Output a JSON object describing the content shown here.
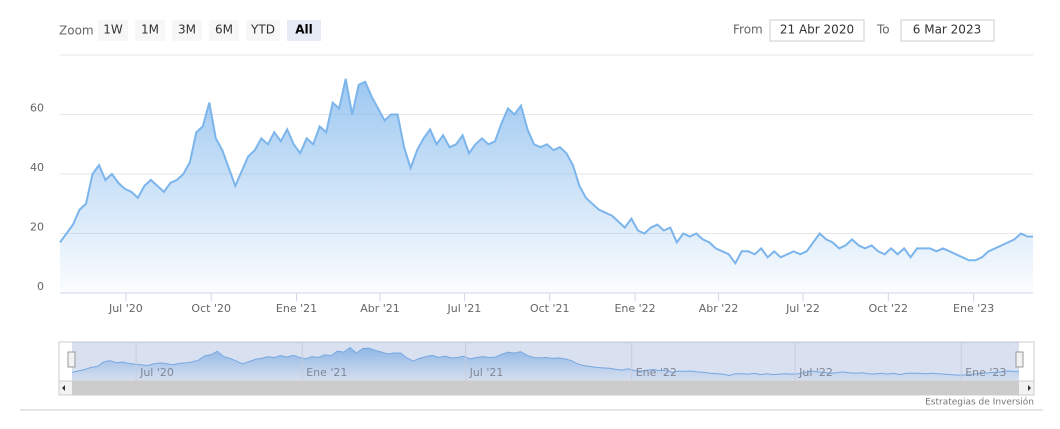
{
  "range_selector": {
    "zoom_label": "Zoom",
    "buttons": [
      "1W",
      "1M",
      "3M",
      "6M",
      "YTD",
      "All"
    ],
    "selected": "All",
    "from_label": "From",
    "from": "21 Abr 2020",
    "to_label": "To",
    "to": "6 Mar 2023"
  },
  "chart_data": {
    "type": "area",
    "color": "#7cb5ec",
    "x": [
      "2020-04-21",
      "2020-04-28",
      "2020-05-05",
      "2020-05-12",
      "2020-05-19",
      "2020-05-26",
      "2020-06-02",
      "2020-06-09",
      "2020-06-16",
      "2020-06-23",
      "2020-06-30",
      "2020-07-07",
      "2020-07-14",
      "2020-07-21",
      "2020-07-28",
      "2020-08-04",
      "2020-08-11",
      "2020-08-18",
      "2020-08-25",
      "2020-09-01",
      "2020-09-08",
      "2020-09-15",
      "2020-09-22",
      "2020-09-29",
      "2020-10-06",
      "2020-10-13",
      "2020-10-20",
      "2020-10-27",
      "2020-11-03",
      "2020-11-10",
      "2020-11-17",
      "2020-11-24",
      "2020-12-01",
      "2020-12-08",
      "2020-12-15",
      "2020-12-22",
      "2020-12-29",
      "2021-01-05",
      "2021-01-12",
      "2021-01-19",
      "2021-01-26",
      "2021-02-02",
      "2021-02-09",
      "2021-02-16",
      "2021-02-23",
      "2021-03-02",
      "2021-03-09",
      "2021-03-16",
      "2021-03-23",
      "2021-03-30",
      "2021-04-06",
      "2021-04-13",
      "2021-04-20",
      "2021-04-27",
      "2021-05-04",
      "2021-05-11",
      "2021-05-18",
      "2021-05-25",
      "2021-06-01",
      "2021-06-08",
      "2021-06-15",
      "2021-06-22",
      "2021-06-29",
      "2021-07-06",
      "2021-07-13",
      "2021-07-20",
      "2021-07-27",
      "2021-08-03",
      "2021-08-10",
      "2021-08-17",
      "2021-08-24",
      "2021-08-31",
      "2021-09-07",
      "2021-09-14",
      "2021-09-21",
      "2021-09-28",
      "2021-10-05",
      "2021-10-12",
      "2021-10-19",
      "2021-10-26",
      "2021-11-02",
      "2021-11-09",
      "2021-11-16",
      "2021-11-23",
      "2021-11-30",
      "2021-12-07",
      "2021-12-14",
      "2021-12-21",
      "2021-12-28",
      "2022-01-04",
      "2022-01-11",
      "2022-01-18",
      "2022-01-25",
      "2022-02-01",
      "2022-02-08",
      "2022-02-15",
      "2022-02-22",
      "2022-03-01",
      "2022-03-08",
      "2022-03-15",
      "2022-03-22",
      "2022-03-29",
      "2022-04-05",
      "2022-04-12",
      "2022-04-19",
      "2022-04-26",
      "2022-05-03",
      "2022-05-10",
      "2022-05-17",
      "2022-05-24",
      "2022-05-31",
      "2022-06-07",
      "2022-06-14",
      "2022-06-21",
      "2022-06-28",
      "2022-07-05",
      "2022-07-12",
      "2022-07-19",
      "2022-07-26",
      "2022-08-02",
      "2022-08-09",
      "2022-08-16",
      "2022-08-23",
      "2022-08-30",
      "2022-09-06",
      "2022-09-13",
      "2022-09-20",
      "2022-09-27",
      "2022-10-04",
      "2022-10-11",
      "2022-10-18",
      "2022-10-25",
      "2022-11-01",
      "2022-11-08",
      "2022-11-15",
      "2022-11-22",
      "2022-11-29",
      "2022-12-06",
      "2022-12-13",
      "2022-12-20",
      "2022-12-27",
      "2023-01-03",
      "2023-01-10",
      "2023-01-17",
      "2023-01-24",
      "2023-01-31",
      "2023-02-07",
      "2023-02-14",
      "2023-02-21",
      "2023-02-28",
      "2023-03-06"
    ],
    "values": [
      17,
      20,
      23,
      28,
      30,
      40,
      43,
      38,
      40,
      37,
      35,
      34,
      32,
      36,
      38,
      36,
      34,
      37,
      38,
      40,
      44,
      54,
      56,
      64,
      52,
      48,
      42,
      36,
      41,
      46,
      48,
      52,
      50,
      54,
      51,
      55,
      50,
      47,
      52,
      50,
      56,
      54,
      64,
      62,
      72,
      60,
      70,
      71,
      66,
      62,
      58,
      60,
      60,
      49,
      42,
      48,
      52,
      55,
      50,
      53,
      49,
      50,
      53,
      47,
      50,
      52,
      50,
      51,
      57,
      62,
      60,
      63,
      55,
      50,
      49,
      50,
      48,
      49,
      47,
      43,
      36,
      32,
      30,
      28,
      27,
      26,
      24,
      22,
      25,
      21,
      20,
      22,
      23,
      21,
      22,
      17,
      20,
      19,
      20,
      18,
      17,
      15,
      14,
      13,
      10,
      14,
      14,
      13,
      15,
      12,
      14,
      12,
      13,
      14,
      13,
      14,
      17,
      20,
      18,
      17,
      15,
      16,
      18,
      16,
      15,
      16,
      14,
      13,
      15,
      13,
      15,
      12,
      15,
      15,
      15,
      14,
      15,
      14,
      13,
      12,
      11,
      11,
      12,
      14,
      15,
      16,
      17,
      18,
      20,
      19,
      19
    ],
    "xlim": [
      "2020-04-21",
      "2023-03-06"
    ],
    "ylim": [
      0,
      80
    ],
    "yticks": [
      0,
      20,
      40,
      60
    ],
    "grid": true,
    "xticks": [
      {
        "value": "2020-07-01",
        "label": "Jul '20"
      },
      {
        "value": "2020-10-01",
        "label": "Oct '20"
      },
      {
        "value": "2021-01-01",
        "label": "Ene '21"
      },
      {
        "value": "2021-04-01",
        "label": "Abr '21"
      },
      {
        "value": "2021-07-01",
        "label": "Jul '21"
      },
      {
        "value": "2021-10-01",
        "label": "Oct '21"
      },
      {
        "value": "2022-01-01",
        "label": "Ene '22"
      },
      {
        "value": "2022-04-01",
        "label": "Abr '22"
      },
      {
        "value": "2022-07-01",
        "label": "Jul '22"
      },
      {
        "value": "2022-10-01",
        "label": "Oct '22"
      },
      {
        "value": "2023-01-01",
        "label": "Ene '23"
      }
    ]
  },
  "navigator": {
    "xticks": [
      {
        "value": "2020-07-01",
        "label": "Jul '20"
      },
      {
        "value": "2021-01-01",
        "label": "Ene '21"
      },
      {
        "value": "2021-07-01",
        "label": "Jul '21"
      },
      {
        "value": "2022-01-01",
        "label": "Ene '22"
      },
      {
        "value": "2022-07-01",
        "label": "Jul '22"
      },
      {
        "value": "2023-01-01",
        "label": "Ene '23"
      }
    ]
  },
  "credits": "Estrategias de Inversión"
}
